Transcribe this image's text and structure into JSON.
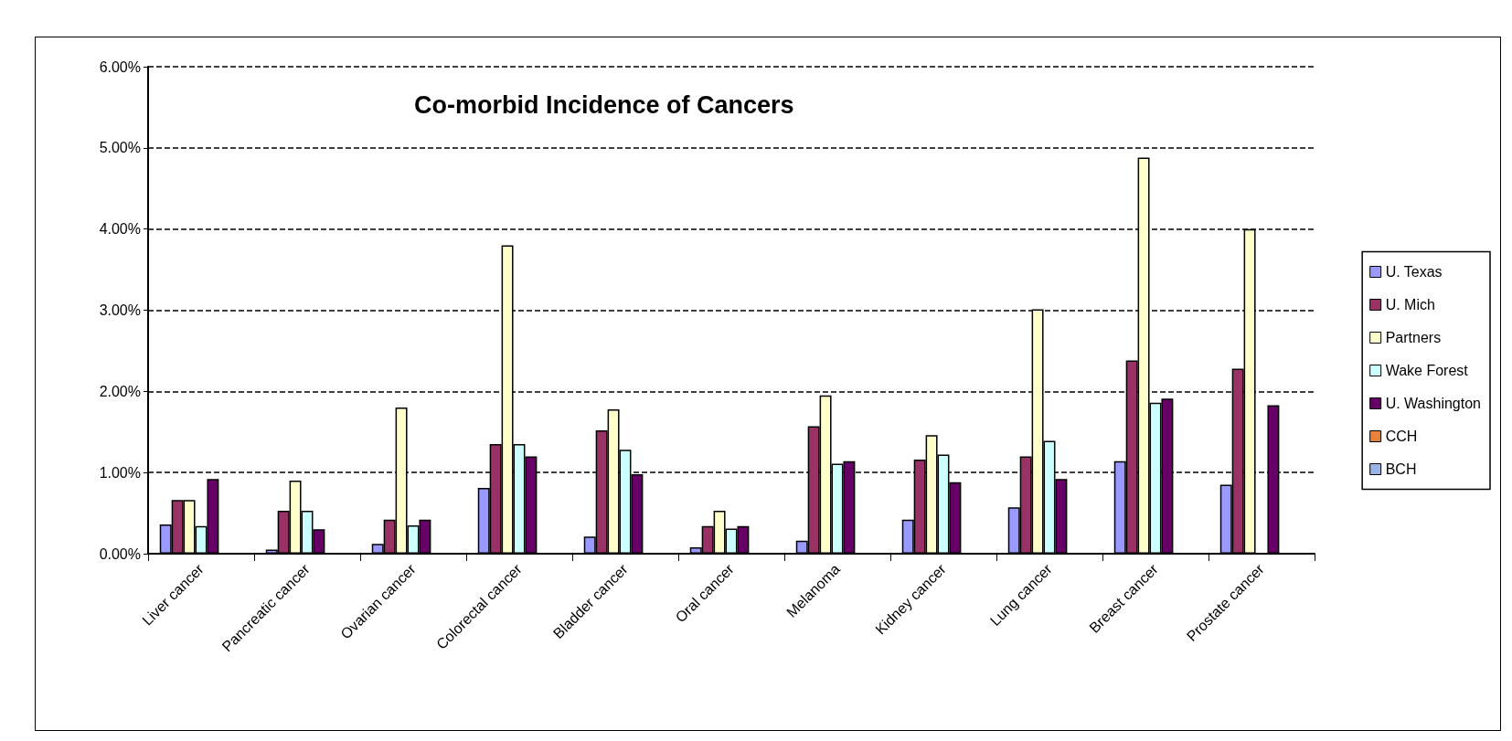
{
  "chart_data": {
    "type": "bar",
    "title": "Co-morbid Incidence of Cancers",
    "categories": [
      "Liver cancer",
      "Pancreatic cancer",
      "Ovarian cancer",
      "Colorectal cancer",
      "Bladder cancer",
      "Oral cancer",
      "Melanoma",
      "Kidney cancer",
      "Lung cancer",
      "Breast cancer",
      "Prostate cancer"
    ],
    "series": [
      {
        "name": "U. Texas",
        "color": "#9999ff",
        "values": [
          0.36,
          0.05,
          0.12,
          0.81,
          0.21,
          0.08,
          0.16,
          0.42,
          0.57,
          1.14,
          0.85
        ]
      },
      {
        "name": "U. Mich",
        "color": "#993366",
        "values": [
          0.66,
          0.53,
          0.42,
          1.35,
          1.52,
          0.34,
          1.57,
          1.16,
          1.2,
          2.38,
          2.28
        ]
      },
      {
        "name": "Partners",
        "color": "#ffffcc",
        "values": [
          0.66,
          0.9,
          1.8,
          3.8,
          1.78,
          0.53,
          1.95,
          1.46,
          3.01,
          4.88,
          4.0
        ]
      },
      {
        "name": "Wake Forest",
        "color": "#ccffff",
        "values": [
          0.34,
          0.53,
          0.35,
          1.35,
          1.28,
          0.31,
          1.11,
          1.22,
          1.39,
          1.86,
          null
        ]
      },
      {
        "name": "U. Washington",
        "color": "#660066",
        "values": [
          0.92,
          0.3,
          0.42,
          1.2,
          0.98,
          0.34,
          1.14,
          0.88,
          0.92,
          1.91,
          1.83
        ]
      },
      {
        "name": "CCH",
        "color": "#e8823a",
        "values": [
          null,
          null,
          null,
          null,
          null,
          null,
          null,
          null,
          null,
          null,
          null
        ]
      },
      {
        "name": "BCH",
        "color": "#99b3e6",
        "values": [
          null,
          null,
          null,
          null,
          null,
          null,
          null,
          null,
          null,
          null,
          null
        ]
      }
    ],
    "ylim": [
      0,
      6
    ],
    "yticks": [
      {
        "value": 0,
        "label": "0.00%"
      },
      {
        "value": 1,
        "label": "1.00%"
      },
      {
        "value": 2,
        "label": "2.00%"
      },
      {
        "value": 3,
        "label": "3.00%"
      },
      {
        "value": 4,
        "label": "4.00%"
      },
      {
        "value": 5,
        "label": "5.00%"
      },
      {
        "value": 6,
        "label": "6.00%"
      }
    ],
    "grid": "y",
    "legend": "right"
  }
}
